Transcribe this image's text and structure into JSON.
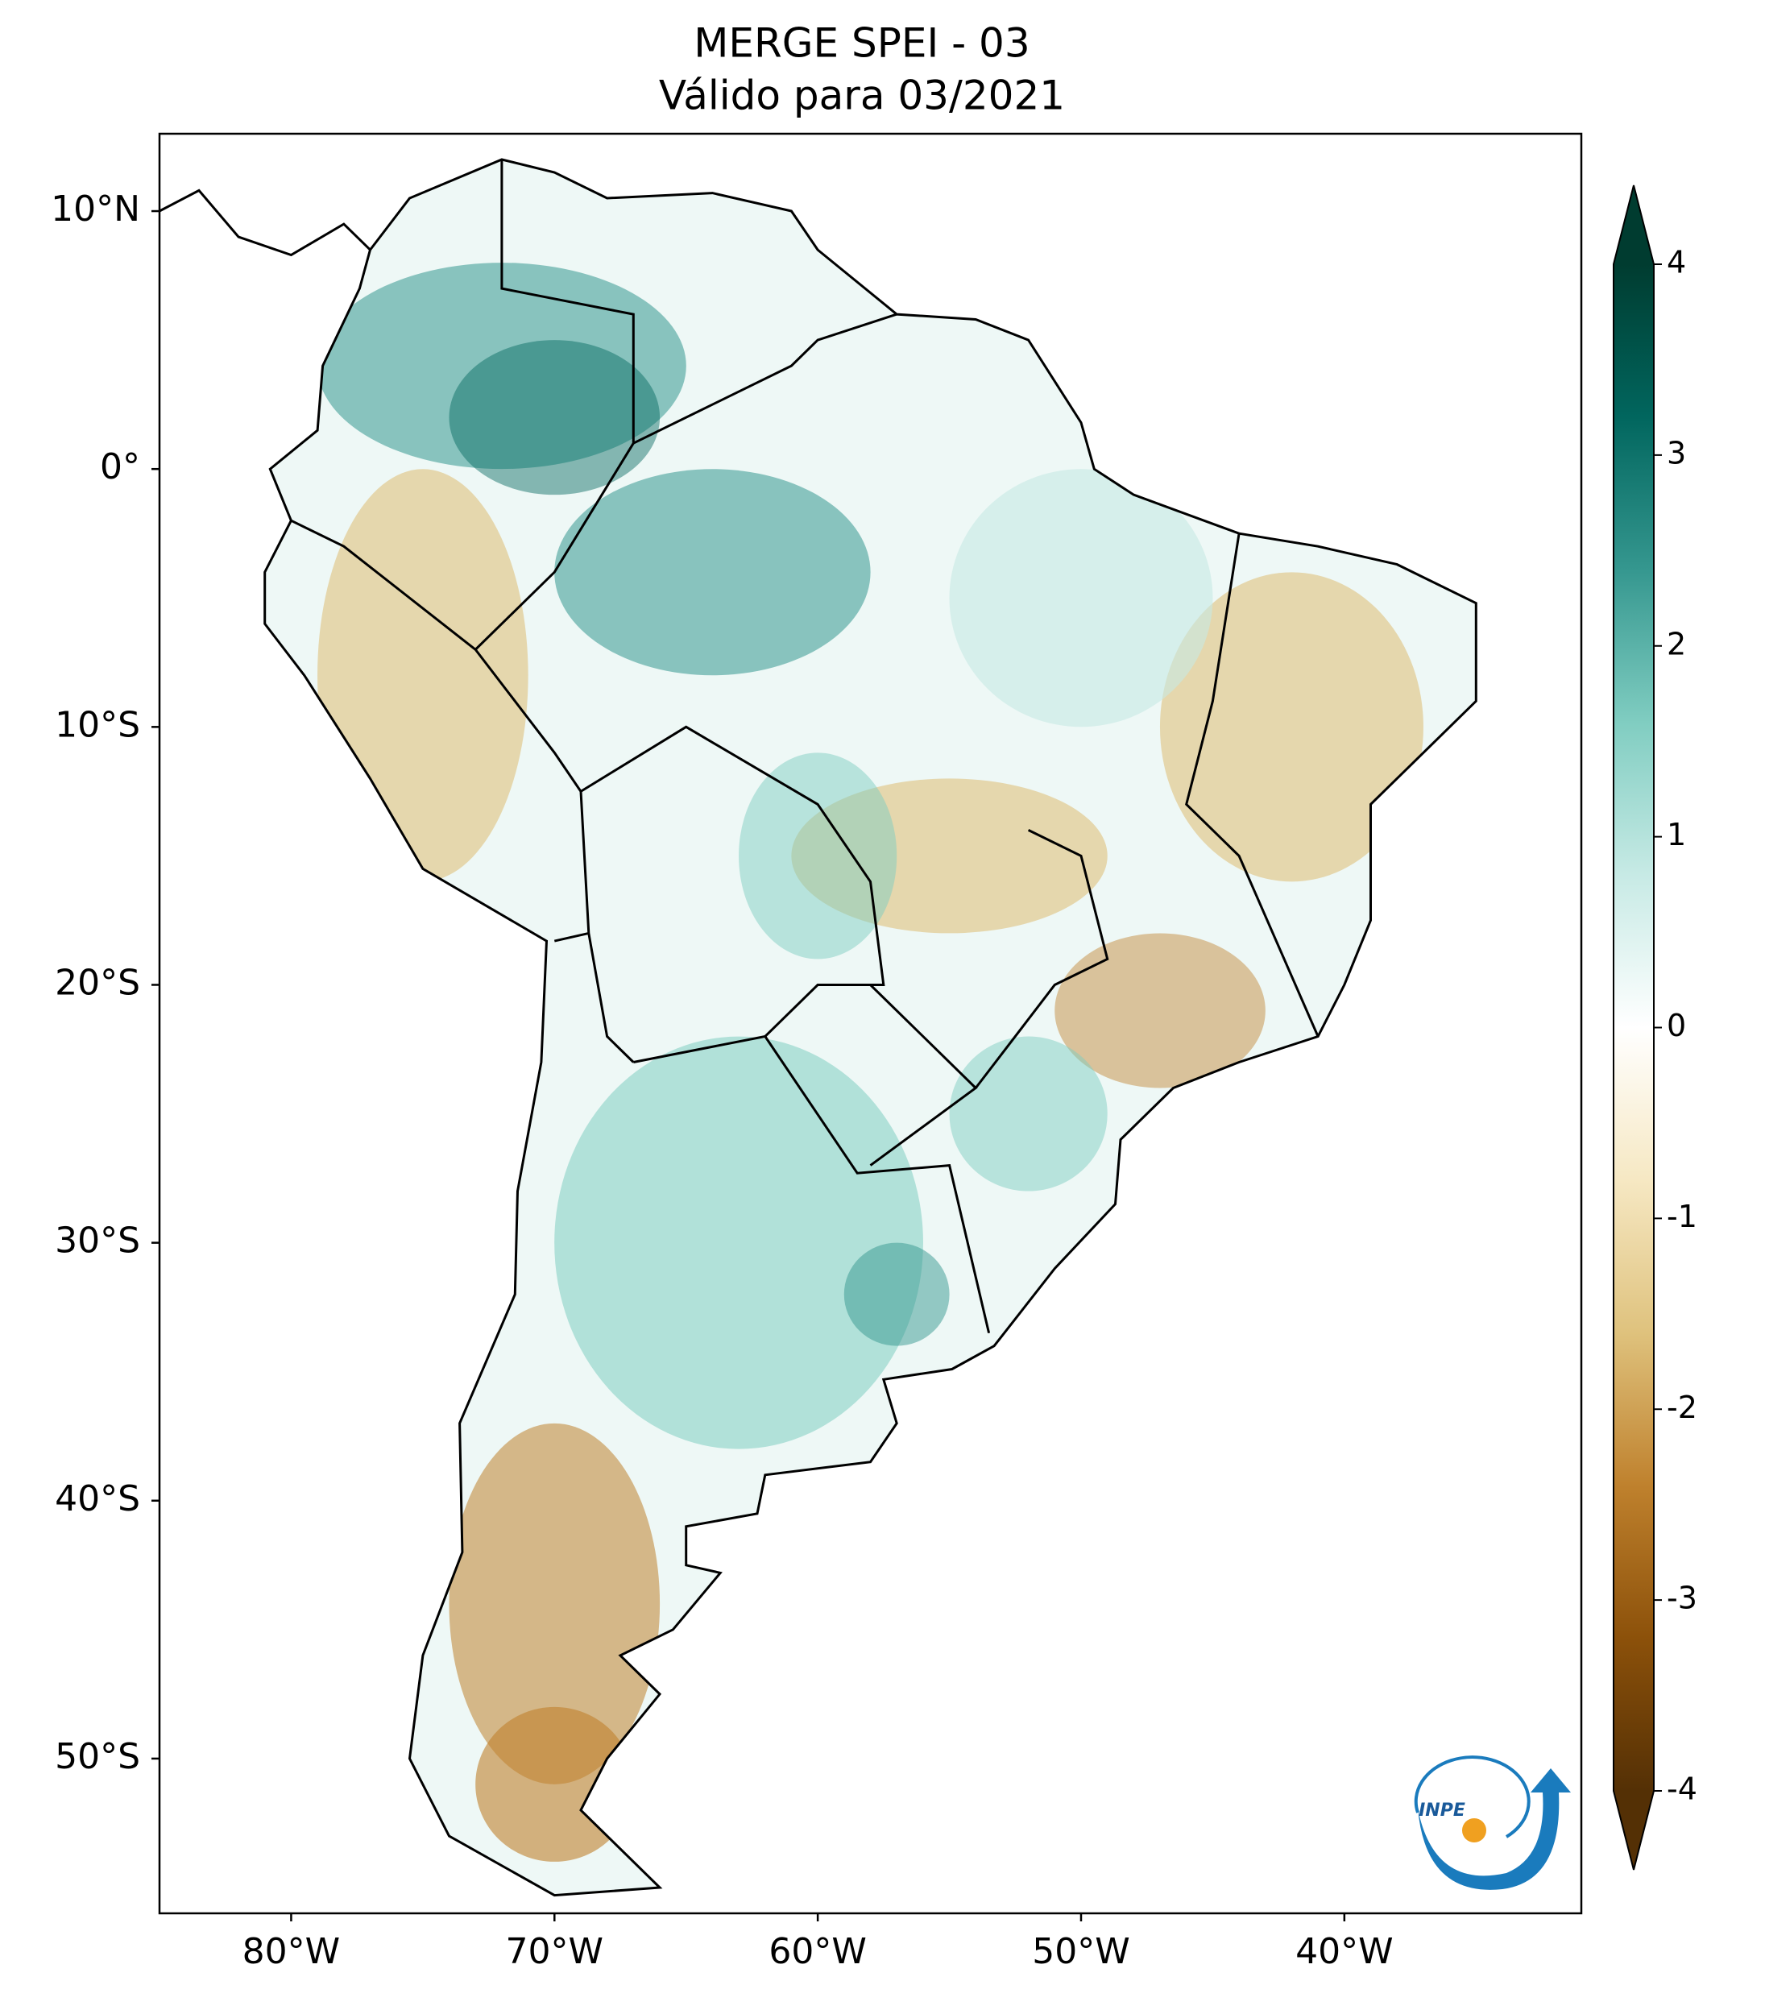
{
  "map": {
    "title": "MERGE   SPEI - 03",
    "subtitle": "Válido para 03/2021",
    "xlim": [
      -85,
      -31
    ],
    "ylim": [
      -56,
      13
    ],
    "xticks": [
      {
        "value": -80,
        "label": "80°W"
      },
      {
        "value": -70,
        "label": "70°W"
      },
      {
        "value": -60,
        "label": "60°W"
      },
      {
        "value": -50,
        "label": "50°W"
      },
      {
        "value": -40,
        "label": "40°W"
      }
    ],
    "yticks": [
      {
        "value": 10,
        "label": "10°N"
      },
      {
        "value": 0,
        "label": "0°"
      },
      {
        "value": -10,
        "label": "10°S"
      },
      {
        "value": -20,
        "label": "20°S"
      },
      {
        "value": -30,
        "label": "30°S"
      },
      {
        "value": -40,
        "label": "40°S"
      },
      {
        "value": -50,
        "label": "50°S"
      }
    ],
    "colorbar": {
      "clim": [
        -4,
        4
      ],
      "ticks": [
        -4,
        -3,
        -2,
        -1,
        0,
        1,
        2,
        3,
        4
      ],
      "colors": [
        "#543005",
        "#8c510a",
        "#bf812d",
        "#dfc27d",
        "#f6e8c3",
        "#ffffff",
        "#c7eae5",
        "#80cdc1",
        "#35978f",
        "#01665e",
        "#003c30"
      ]
    },
    "logo": {
      "text": "INPE"
    }
  }
}
